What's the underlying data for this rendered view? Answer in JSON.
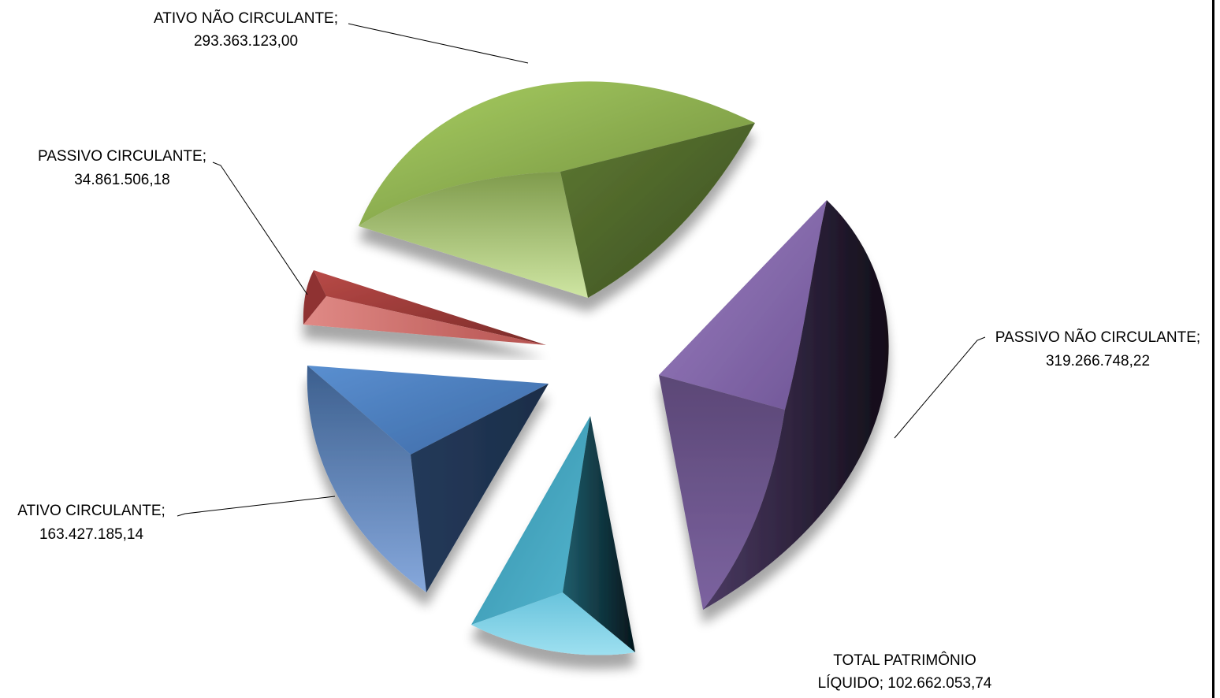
{
  "chart_data": {
    "type": "pie",
    "title": "",
    "legend": "none",
    "slices": [
      {
        "label": "ATIVO NÃO CIRCULANTE",
        "value_text": "293.363.123,00",
        "value": 293363123.0,
        "color": "#9bbb59"
      },
      {
        "label": "PASSIVO NÃO CIRCULANTE",
        "value_text": "319.266.748,22",
        "value": 319266748.22,
        "color": "#8064a2"
      },
      {
        "label": "TOTAL PATRIMÔNIO LÍQUIDO",
        "value_text": "102.662.053,74",
        "value": 102662053.74,
        "color": "#4bacc6"
      },
      {
        "label": "ATIVO CIRCULANTE",
        "value_text": "163.427.185,14",
        "value": 163427185.14,
        "color": "#4f81bd"
      },
      {
        "label": "PASSIVO CIRCULANTE",
        "value_text": "34.861.506,18",
        "value": 34861506.18,
        "color": "#c0504d"
      }
    ]
  },
  "labels": {
    "anc_line1": "ATIVO NÃO CIRCULANTE;",
    "anc_line2": "293.363.123,00",
    "pc_line1": "PASSIVO CIRCULANTE;",
    "pc_line2": "34.861.506,18",
    "pnc_line1": "PASSIVO NÃO CIRCULANTE;",
    "pnc_line2": "319.266.748,22",
    "ac_line1": "ATIVO CIRCULANTE;",
    "ac_line2": "163.427.185,14",
    "tpl_line1": "TOTAL PATRIMÔNIO",
    "tpl_line2": "LÍQUIDO;  102.662.053,74"
  }
}
